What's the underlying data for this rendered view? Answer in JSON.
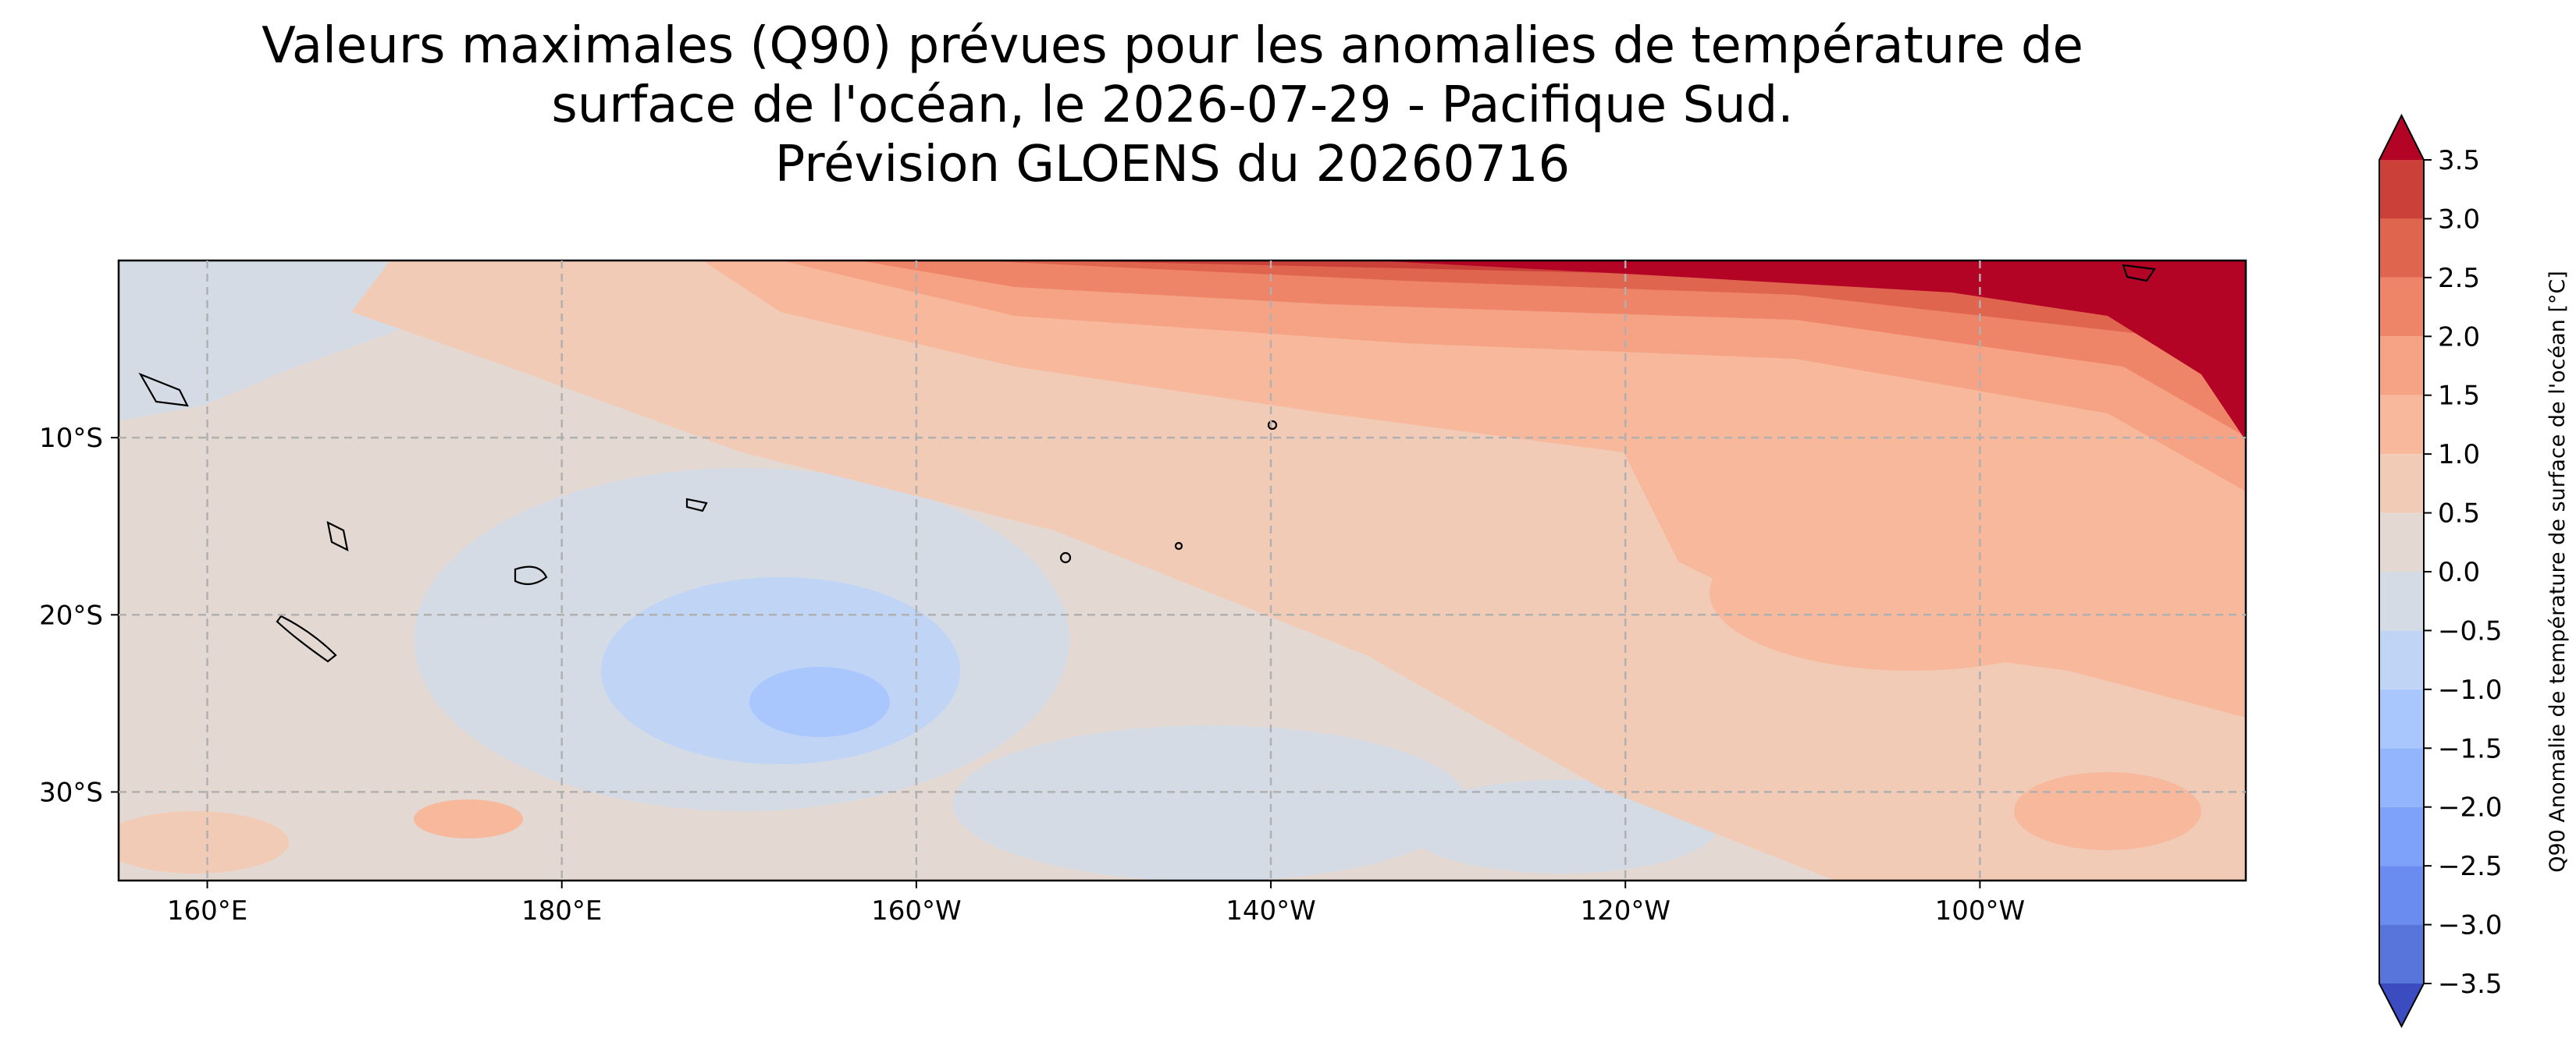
{
  "title": [
    "Valeurs maximales (Q90) prévues pour les anomalies de température de",
    "surface de l'océan, le 2026-07-29 - Pacifique Sud.",
    "Prévision GLOENS du 20260716"
  ],
  "map": {
    "xlim": [
      155,
      275
    ],
    "ylim": [
      -35,
      0
    ],
    "xticks": [
      {
        "value": 160,
        "label": "160°E"
      },
      {
        "value": 180,
        "label": "180°E"
      },
      {
        "value": 200,
        "label": "160°W"
      },
      {
        "value": 220,
        "label": "140°W"
      },
      {
        "value": 240,
        "label": "120°W"
      },
      {
        "value": 260,
        "label": "100°W"
      }
    ],
    "yticks": [
      {
        "value": -10,
        "label": "10°S"
      },
      {
        "value": -20,
        "label": "20°S"
      },
      {
        "value": -30,
        "label": "30°S"
      }
    ],
    "grid": true
  },
  "colorbar": {
    "label": "Q90 Anomalie de température de surface de l'océan [°C]",
    "clim": [
      -3.5,
      3.5
    ],
    "ticks": [
      {
        "value": -3.5,
        "label": "−3.5"
      },
      {
        "value": -3,
        "label": "−3.0"
      },
      {
        "value": -2.5,
        "label": "−2.5"
      },
      {
        "value": -2,
        "label": "−2.0"
      },
      {
        "value": -1.5,
        "label": "−1.5"
      },
      {
        "value": -1,
        "label": "−1.0"
      },
      {
        "value": -0.5,
        "label": "−0.5"
      },
      {
        "value": 0,
        "label": "0.0"
      },
      0.5,
      {
        "value": 1,
        "label": "1.0"
      },
      1.5,
      {
        "value": 2,
        "label": "2.0"
      },
      2.5,
      {
        "value": 3,
        "label": "3.0"
      },
      3.5
    ],
    "colors": [
      "#5875db",
      "#6a8bef",
      "#7ea1f9",
      "#93b5fe",
      "#aac7fd",
      "#c0d4f5",
      "#d5dbe5",
      "#e4d9d2",
      "#f2cbb7",
      "#f7b89c",
      "#f6a385",
      "#ee8468",
      "#e0654f",
      "#cc403a"
    ],
    "extend_colors": [
      "#3b4cc0",
      "#b40426"
    ]
  }
}
